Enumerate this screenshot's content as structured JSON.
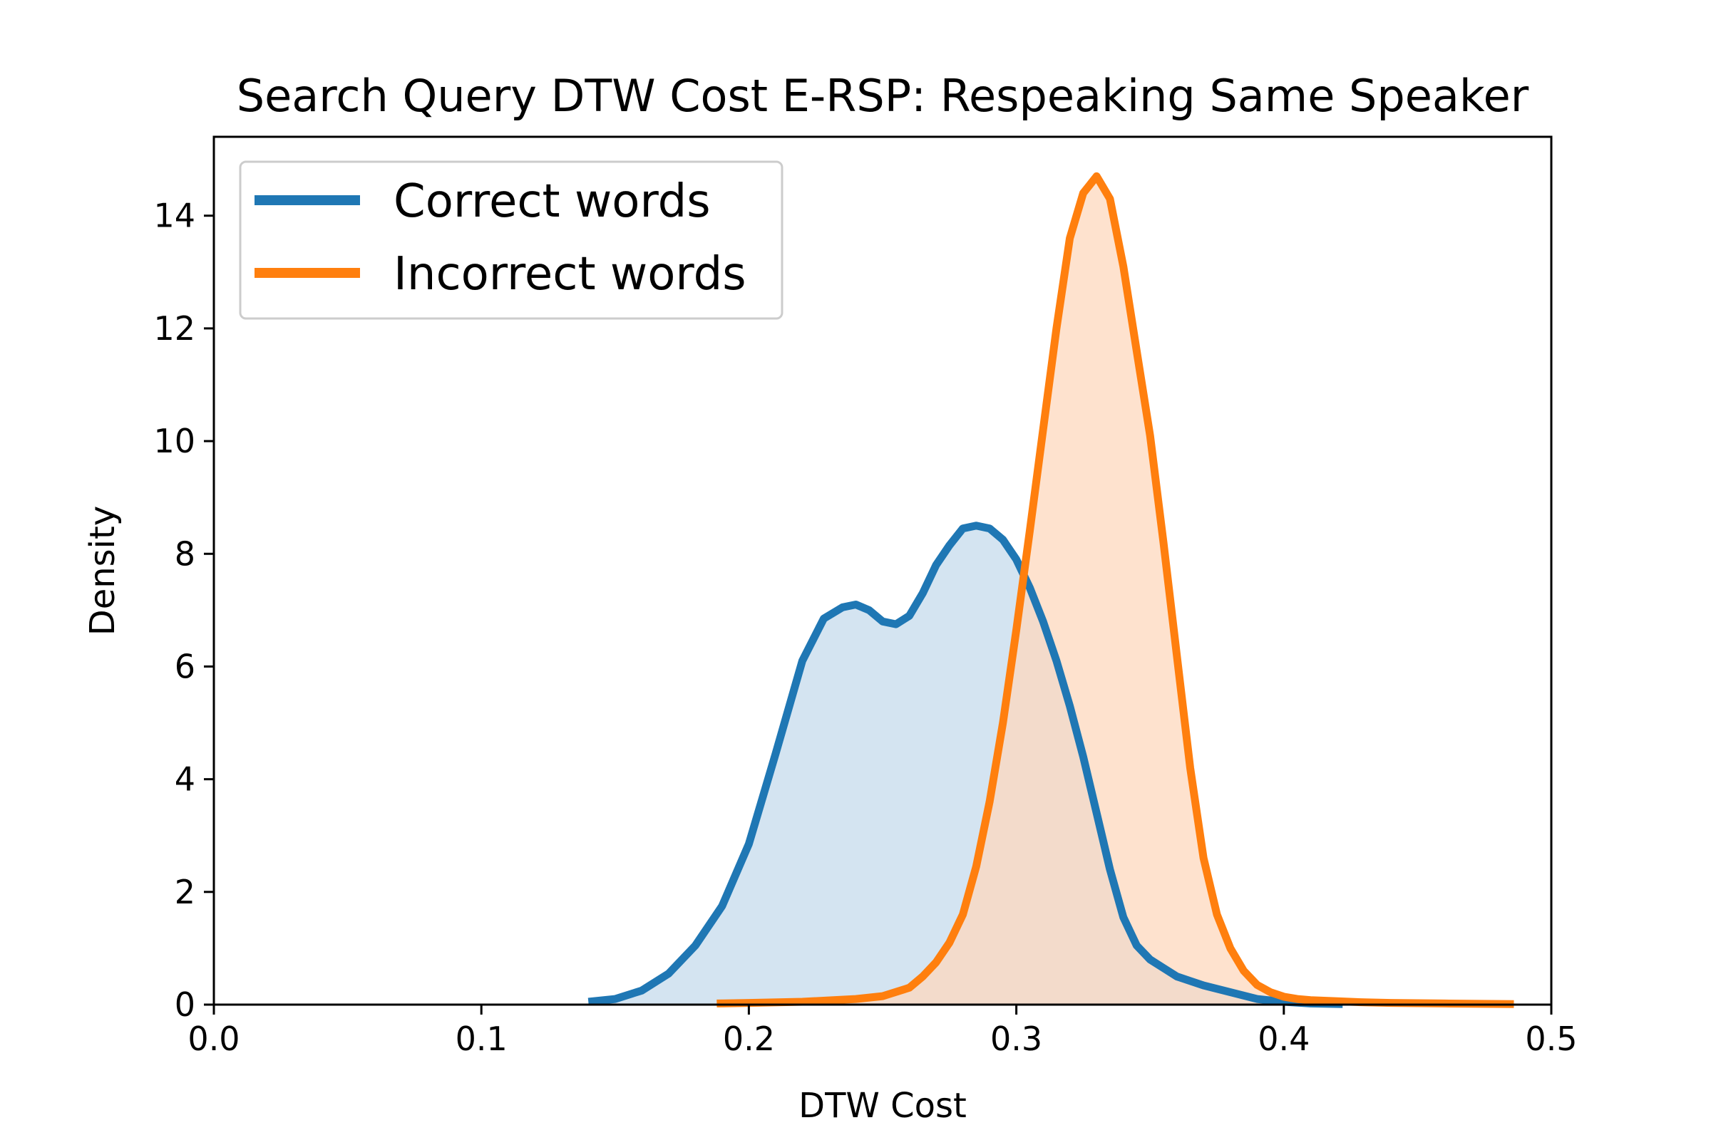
{
  "chart_data": {
    "type": "area",
    "title": "Search Query DTW Cost E-RSP: Respeaking Same Speaker",
    "xlabel": "DTW Cost",
    "ylabel": "Density",
    "xlim": [
      0.0,
      0.5
    ],
    "ylim": [
      0,
      15.4
    ],
    "xticks": [
      0.0,
      0.1,
      0.2,
      0.3,
      0.4,
      0.5
    ],
    "xtick_labels": [
      "0.0",
      "0.1",
      "0.2",
      "0.3",
      "0.4",
      "0.5"
    ],
    "yticks": [
      0,
      2,
      4,
      6,
      8,
      10,
      12,
      14
    ],
    "ytick_labels": [
      "0",
      "2",
      "4",
      "6",
      "8",
      "10",
      "12",
      "14"
    ],
    "grid": false,
    "legend_position": "top-left",
    "series": [
      {
        "name": "Correct words",
        "color": "#1f77b4",
        "fill_color": "#c6dbec",
        "x": [
          0.14,
          0.15,
          0.16,
          0.17,
          0.18,
          0.19,
          0.2,
          0.21,
          0.22,
          0.228,
          0.235,
          0.24,
          0.245,
          0.25,
          0.255,
          0.26,
          0.265,
          0.27,
          0.275,
          0.28,
          0.285,
          0.29,
          0.295,
          0.3,
          0.305,
          0.31,
          0.315,
          0.32,
          0.325,
          0.33,
          0.335,
          0.34,
          0.345,
          0.35,
          0.355,
          0.36,
          0.365,
          0.37,
          0.38,
          0.39,
          0.4,
          0.41,
          0.422
        ],
        "y": [
          0.05,
          0.1,
          0.25,
          0.55,
          1.05,
          1.75,
          2.85,
          4.45,
          6.1,
          6.85,
          7.05,
          7.1,
          7.0,
          6.8,
          6.75,
          6.9,
          7.3,
          7.8,
          8.15,
          8.45,
          8.5,
          8.45,
          8.25,
          7.9,
          7.4,
          6.8,
          6.1,
          5.3,
          4.4,
          3.4,
          2.4,
          1.55,
          1.05,
          0.8,
          0.65,
          0.5,
          0.42,
          0.34,
          0.22,
          0.1,
          0.05,
          0.02,
          0.01
        ]
      },
      {
        "name": "Incorrect words",
        "color": "#ff7f0e",
        "fill_color": "#fdd8bd",
        "x": [
          0.188,
          0.2,
          0.22,
          0.24,
          0.25,
          0.26,
          0.265,
          0.27,
          0.275,
          0.28,
          0.285,
          0.29,
          0.295,
          0.3,
          0.305,
          0.31,
          0.315,
          0.32,
          0.325,
          0.33,
          0.335,
          0.34,
          0.345,
          0.35,
          0.355,
          0.36,
          0.365,
          0.37,
          0.375,
          0.38,
          0.385,
          0.39,
          0.395,
          0.4,
          0.405,
          0.41,
          0.42,
          0.43,
          0.44,
          0.46,
          0.486
        ],
        "y": [
          0.02,
          0.03,
          0.05,
          0.1,
          0.15,
          0.3,
          0.5,
          0.75,
          1.1,
          1.6,
          2.45,
          3.6,
          5.0,
          6.65,
          8.4,
          10.2,
          12.0,
          13.6,
          14.4,
          14.7,
          14.3,
          13.1,
          11.6,
          10.1,
          8.2,
          6.2,
          4.2,
          2.6,
          1.6,
          1.0,
          0.6,
          0.35,
          0.22,
          0.14,
          0.1,
          0.08,
          0.06,
          0.04,
          0.03,
          0.02,
          0.01
        ]
      }
    ]
  }
}
